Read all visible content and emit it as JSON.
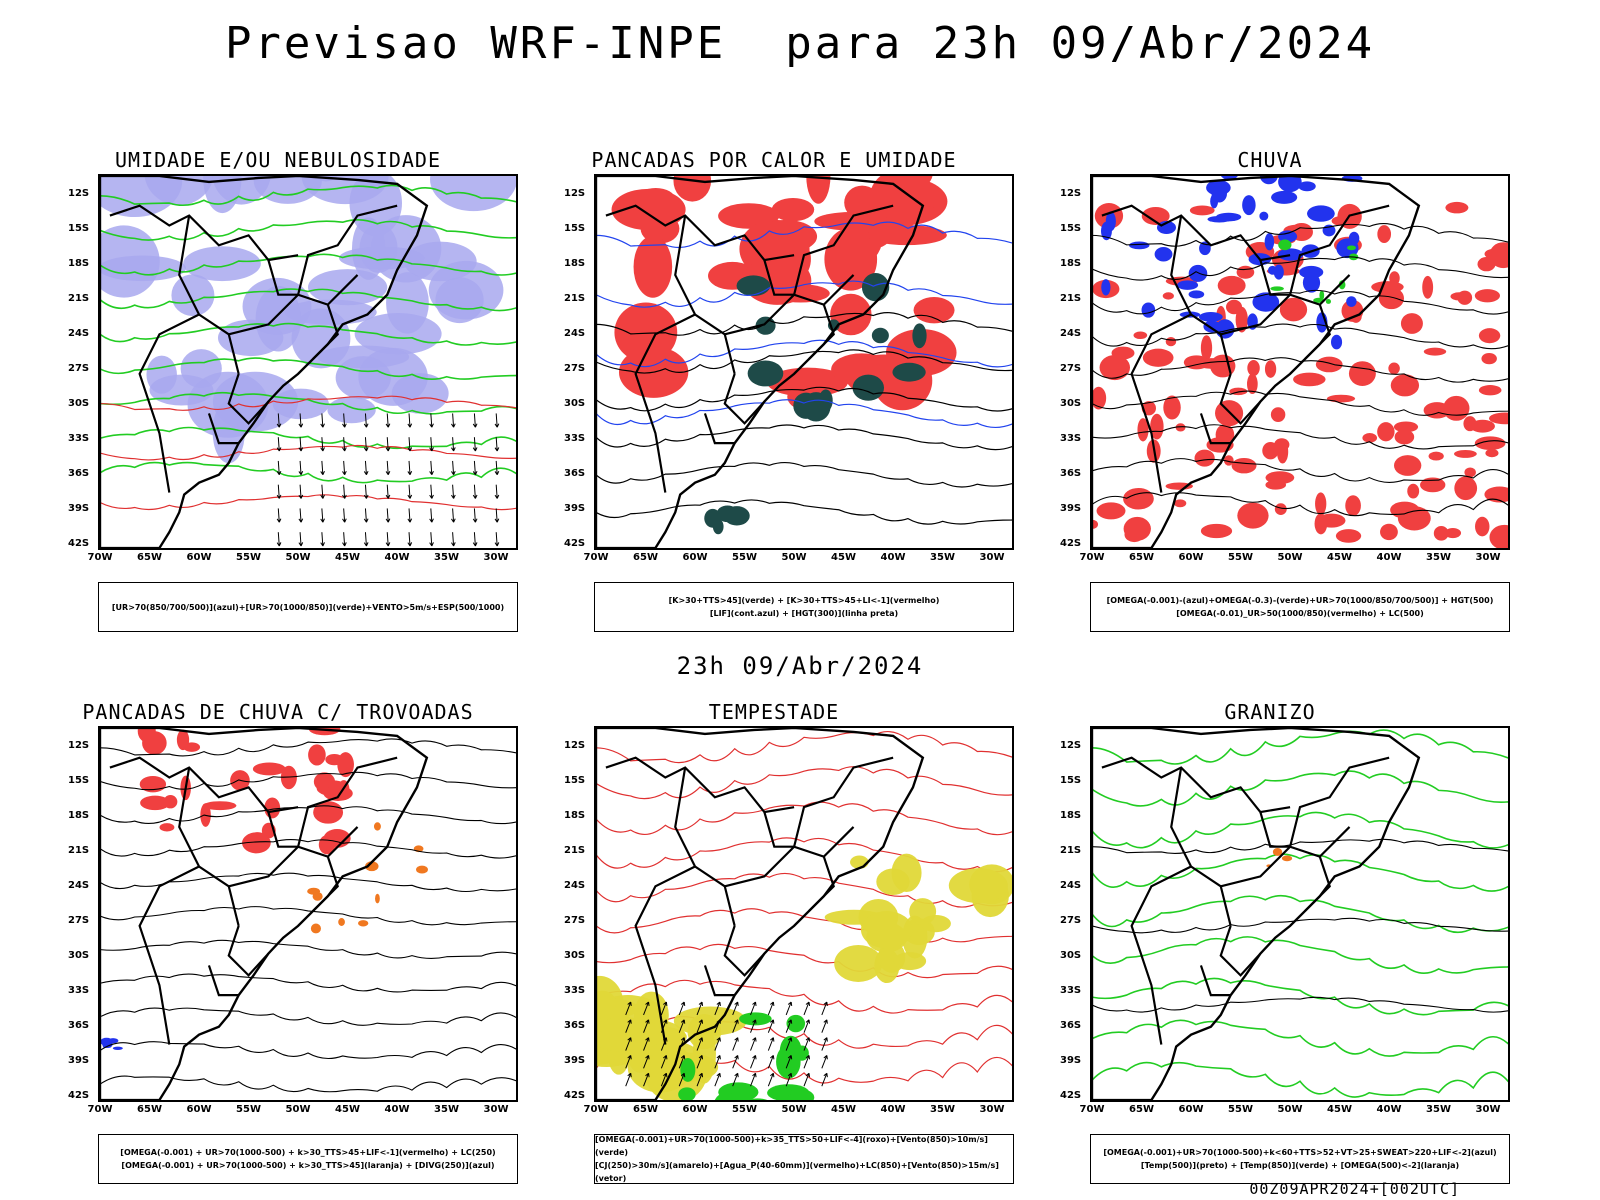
{
  "title": "Previsao WRF-INPE  para 23h 09/Abr/2024",
  "mid_title": "23h 09/Abr/2024",
  "footer": "00Z09APR2024+[002UTC]",
  "lat_labels": [
    "12S",
    "15S",
    "18S",
    "21S",
    "24S",
    "27S",
    "30S",
    "33S",
    "36S",
    "39S",
    "42S"
  ],
  "lon_labels": [
    "70W",
    "65W",
    "60W",
    "55W",
    "50W",
    "45W",
    "40W",
    "35W",
    "30W"
  ],
  "colors": {
    "blue": "#2233ee",
    "lavender": "#a8a8ee",
    "green": "#22cc22",
    "red": "#f04040",
    "teal": "#1e4a48",
    "yellow": "#e0d838",
    "orange": "#f07820"
  },
  "panels": [
    {
      "title": "UMIDADE E/OU NEBULOSIDADE",
      "legend": [
        "[UR>70(850/700/500)](azul)+[UR>70(1000/850)](verde)+VENTO>5m/s+ESP(500/1000)"
      ]
    },
    {
      "title": "PANCADAS POR CALOR E UMIDADE",
      "legend": [
        "[K>30+TTS>45](verde) + [K>30+TTS>45+LI<-1](vermelho)",
        "[LIF](cont.azul) + [HGT(300)](linha preta)"
      ]
    },
    {
      "title": "CHUVA",
      "legend": [
        "[OMEGA(-0.001)-(azul)+OMEGA(-0.3)-(verde)+UR>70(1000/850/700/500)] + HGT(500)",
        "[OMEGA(-0.01)_UR>50(1000/850)(vermelho) + LC(500)"
      ]
    },
    {
      "title": "PANCADAS DE CHUVA C/ TROVOADAS",
      "legend": [
        "[OMEGA(-0.001) + UR>70(1000-500) + k>30_TTS>45+LIF<-1](vermelho) + LC(250)",
        "[OMEGA(-0.001) + UR>70(1000-500) + k>30_TTS>45](laranja) + [DIVG(250)](azul)"
      ]
    },
    {
      "title": "TEMPESTADE",
      "legend": [
        "[OMEGA(-0.001)+UR>70(1000-500)+k>35_TTS>50+LIF<-4](roxo)+[Vento(850)>10m/s](verde)",
        "[CJ(250)>30m/s](amarelo)+[Agua_P(40-60mm)](vermelho)+LC(850)+[Vento(850)>15m/s](vetor)"
      ]
    },
    {
      "title": "GRANIZO",
      "legend": [
        "[OMEGA(-0.001)+UR>70(1000-500)+k<60+TTS>52+VT>25+SWEAT>220+LIF<-2](azul)",
        "[Temp(500)](preto) + [Temp(850)](verde) + [OMEGA(500)<-2](laranja)"
      ]
    }
  ]
}
